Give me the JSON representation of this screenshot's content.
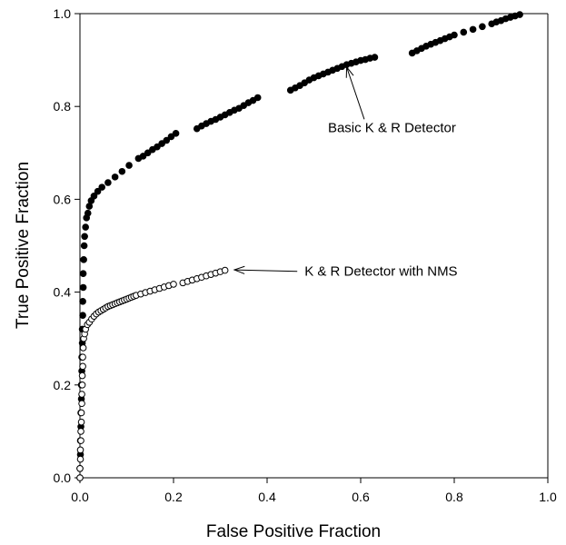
{
  "chart_data": {
    "type": "scatter",
    "title": "",
    "xlabel": "False Positive Fraction",
    "ylabel": "True Positive Fraction",
    "xlim": [
      0.0,
      1.0
    ],
    "ylim": [
      0.0,
      1.0
    ],
    "xticks": [
      "0.0",
      "0.2",
      "0.4",
      "0.6",
      "0.8",
      "1.0"
    ],
    "yticks": [
      "0.0",
      "0.2",
      "0.4",
      "0.6",
      "0.8",
      "1.0"
    ],
    "grid": false,
    "legend": "none",
    "series": [
      {
        "marker": "filled-circle",
        "color": "#000000",
        "points": [
          [
            0.0,
            0.0
          ],
          [
            0.0,
            0.02
          ],
          [
            0.001,
            0.05
          ],
          [
            0.001,
            0.08
          ],
          [
            0.002,
            0.11
          ],
          [
            0.002,
            0.14
          ],
          [
            0.003,
            0.17
          ],
          [
            0.003,
            0.2
          ],
          [
            0.004,
            0.23
          ],
          [
            0.004,
            0.26
          ],
          [
            0.005,
            0.29
          ],
          [
            0.005,
            0.32
          ],
          [
            0.006,
            0.35
          ],
          [
            0.006,
            0.38
          ],
          [
            0.007,
            0.41
          ],
          [
            0.007,
            0.44
          ],
          [
            0.008,
            0.47
          ],
          [
            0.009,
            0.5
          ],
          [
            0.01,
            0.52
          ],
          [
            0.012,
            0.54
          ],
          [
            0.014,
            0.56
          ],
          [
            0.017,
            0.57
          ],
          [
            0.02,
            0.585
          ],
          [
            0.024,
            0.597
          ],
          [
            0.03,
            0.607
          ],
          [
            0.038,
            0.617
          ],
          [
            0.047,
            0.626
          ],
          [
            0.06,
            0.636
          ],
          [
            0.075,
            0.648
          ],
          [
            0.09,
            0.66
          ],
          [
            0.105,
            0.673
          ],
          [
            0.125,
            0.688
          ],
          [
            0.135,
            0.693
          ],
          [
            0.145,
            0.7
          ],
          [
            0.155,
            0.707
          ],
          [
            0.165,
            0.713
          ],
          [
            0.175,
            0.72
          ],
          [
            0.185,
            0.727
          ],
          [
            0.195,
            0.735
          ],
          [
            0.205,
            0.742
          ],
          [
            0.25,
            0.752
          ],
          [
            0.26,
            0.758
          ],
          [
            0.27,
            0.763
          ],
          [
            0.28,
            0.768
          ],
          [
            0.29,
            0.772
          ],
          [
            0.3,
            0.777
          ],
          [
            0.31,
            0.782
          ],
          [
            0.32,
            0.787
          ],
          [
            0.33,
            0.792
          ],
          [
            0.34,
            0.796
          ],
          [
            0.35,
            0.802
          ],
          [
            0.36,
            0.808
          ],
          [
            0.37,
            0.813
          ],
          [
            0.38,
            0.819
          ],
          [
            0.45,
            0.835
          ],
          [
            0.46,
            0.84
          ],
          [
            0.47,
            0.845
          ],
          [
            0.48,
            0.851
          ],
          [
            0.49,
            0.857
          ],
          [
            0.5,
            0.862
          ],
          [
            0.51,
            0.866
          ],
          [
            0.52,
            0.87
          ],
          [
            0.53,
            0.874
          ],
          [
            0.54,
            0.878
          ],
          [
            0.55,
            0.882
          ],
          [
            0.56,
            0.886
          ],
          [
            0.57,
            0.89
          ],
          [
            0.58,
            0.893
          ],
          [
            0.59,
            0.896
          ],
          [
            0.6,
            0.899
          ],
          [
            0.61,
            0.901
          ],
          [
            0.62,
            0.904
          ],
          [
            0.63,
            0.906
          ],
          [
            0.71,
            0.915
          ],
          [
            0.72,
            0.92
          ],
          [
            0.73,
            0.925
          ],
          [
            0.74,
            0.93
          ],
          [
            0.75,
            0.934
          ],
          [
            0.76,
            0.938
          ],
          [
            0.77,
            0.942
          ],
          [
            0.78,
            0.946
          ],
          [
            0.79,
            0.95
          ],
          [
            0.8,
            0.954
          ],
          [
            0.82,
            0.96
          ],
          [
            0.84,
            0.966
          ],
          [
            0.86,
            0.972
          ],
          [
            0.88,
            0.978
          ],
          [
            0.89,
            0.982
          ],
          [
            0.9,
            0.985
          ],
          [
            0.91,
            0.989
          ],
          [
            0.92,
            0.992
          ],
          [
            0.93,
            0.995
          ],
          [
            0.94,
            0.998
          ]
        ]
      },
      {
        "marker": "open-circle",
        "color": "#000000",
        "points": [
          [
            0.0,
            0.0
          ],
          [
            0.0,
            0.02
          ],
          [
            0.001,
            0.04
          ],
          [
            0.001,
            0.06
          ],
          [
            0.002,
            0.08
          ],
          [
            0.002,
            0.1
          ],
          [
            0.003,
            0.12
          ],
          [
            0.003,
            0.14
          ],
          [
            0.004,
            0.16
          ],
          [
            0.004,
            0.18
          ],
          [
            0.005,
            0.2
          ],
          [
            0.005,
            0.22
          ],
          [
            0.006,
            0.24
          ],
          [
            0.006,
            0.26
          ],
          [
            0.007,
            0.28
          ],
          [
            0.008,
            0.3
          ],
          [
            0.01,
            0.31
          ],
          [
            0.012,
            0.32
          ],
          [
            0.016,
            0.33
          ],
          [
            0.02,
            0.335
          ],
          [
            0.025,
            0.342
          ],
          [
            0.03,
            0.348
          ],
          [
            0.035,
            0.353
          ],
          [
            0.04,
            0.357
          ],
          [
            0.045,
            0.36
          ],
          [
            0.05,
            0.363
          ],
          [
            0.055,
            0.366
          ],
          [
            0.06,
            0.369
          ],
          [
            0.065,
            0.371
          ],
          [
            0.07,
            0.373
          ],
          [
            0.075,
            0.375
          ],
          [
            0.08,
            0.377
          ],
          [
            0.085,
            0.379
          ],
          [
            0.09,
            0.381
          ],
          [
            0.095,
            0.383
          ],
          [
            0.1,
            0.385
          ],
          [
            0.105,
            0.387
          ],
          [
            0.11,
            0.389
          ],
          [
            0.115,
            0.391
          ],
          [
            0.12,
            0.393
          ],
          [
            0.13,
            0.396
          ],
          [
            0.14,
            0.399
          ],
          [
            0.15,
            0.402
          ],
          [
            0.16,
            0.405
          ],
          [
            0.17,
            0.408
          ],
          [
            0.18,
            0.411
          ],
          [
            0.19,
            0.414
          ],
          [
            0.2,
            0.417
          ],
          [
            0.22,
            0.42
          ],
          [
            0.23,
            0.423
          ],
          [
            0.24,
            0.426
          ],
          [
            0.25,
            0.429
          ],
          [
            0.26,
            0.432
          ],
          [
            0.27,
            0.435
          ],
          [
            0.28,
            0.438
          ],
          [
            0.29,
            0.441
          ],
          [
            0.3,
            0.444
          ],
          [
            0.31,
            0.447
          ]
        ]
      }
    ],
    "annotations": [
      {
        "text": "Basic K & R Detector",
        "text_at": [
          0.53,
          0.745
        ],
        "arrow_to": [
          0.57,
          0.885
        ]
      },
      {
        "text": "K & R Detector with NMS",
        "text_at": [
          0.48,
          0.435
        ],
        "arrow_to": [
          0.33,
          0.448
        ]
      }
    ]
  }
}
